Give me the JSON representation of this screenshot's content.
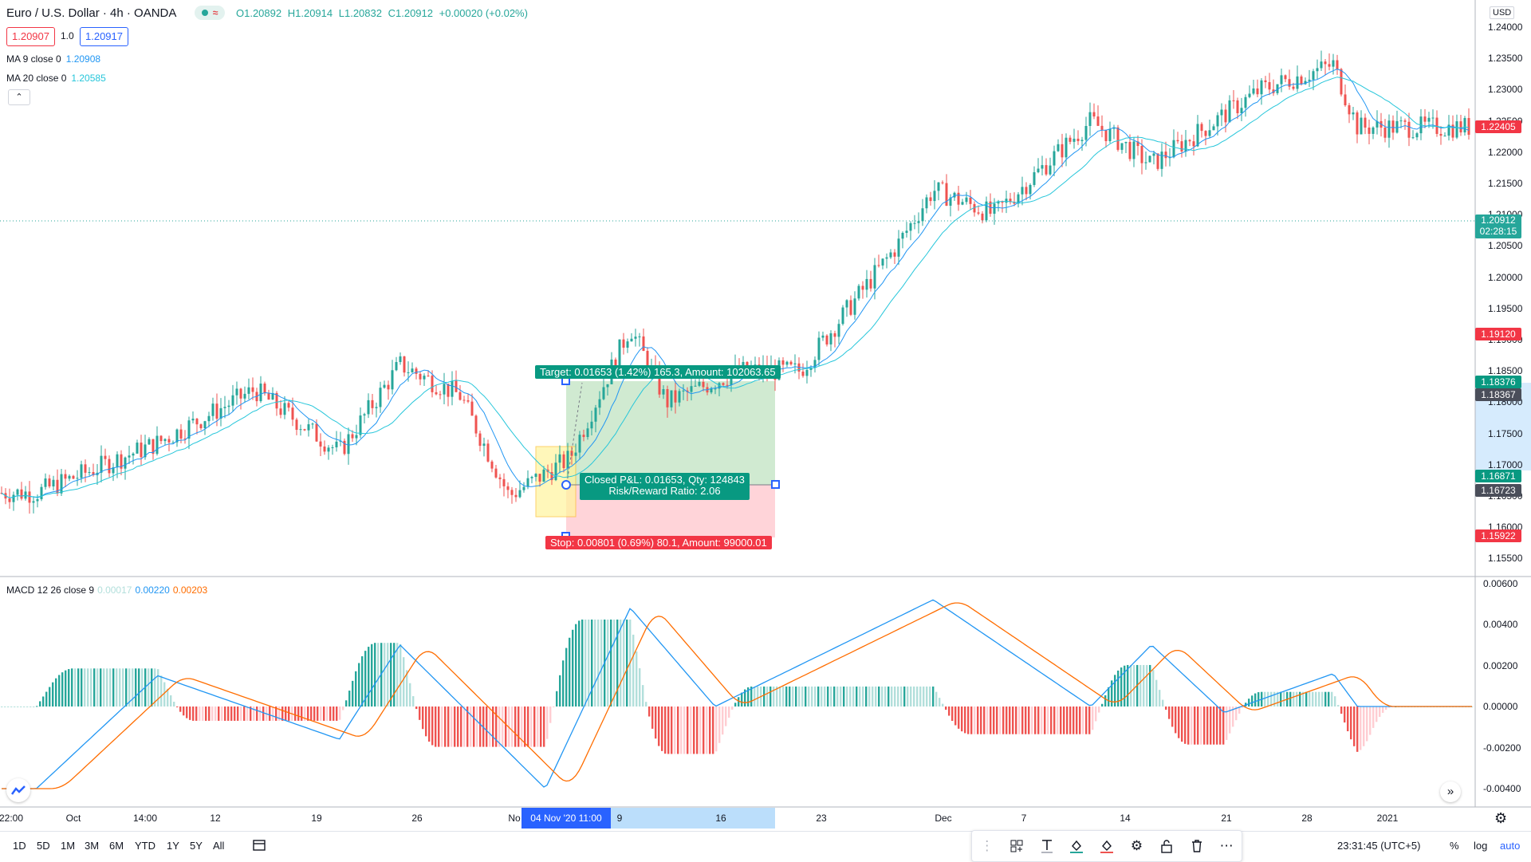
{
  "header": {
    "symbol_title": "Euro / U.S. Dollar · 4h · OANDA",
    "ohlc": {
      "open": "O1.20892",
      "high": "H1.20914",
      "low": "L1.20832",
      "close": "C1.20912",
      "change": "+0.00020 (+0.02%)"
    },
    "sell_price": "1.20907",
    "quantity": "1.0",
    "buy_price": "1.20917"
  },
  "indicators": {
    "ma9": {
      "label": "MA 9 close 0",
      "value": "1.20908"
    },
    "ma20": {
      "label": "MA 20 close 0",
      "value": "1.20585"
    }
  },
  "price_axis": {
    "currency": "USD",
    "ticks": [
      "1.24000",
      "1.23500",
      "1.23000",
      "1.22500",
      "1.22000",
      "1.21500",
      "1.21000",
      "1.20500",
      "1.20000",
      "1.19500",
      "1.19000",
      "1.18500",
      "1.18000",
      "1.17500",
      "1.17000",
      "1.16500",
      "1.16000",
      "1.15500"
    ],
    "labels": {
      "last": "1.22405",
      "current": "1.20912",
      "countdown": "02:28:15",
      "level_red": "1.19120",
      "target": "1.18376",
      "entry_marker": "1.18367",
      "pnl": "1.16871",
      "entry": "1.16723",
      "stop": "1.15922"
    }
  },
  "position_tool": {
    "target_text": "Target: 0.01653 (1.42%) 165.3, Amount: 102063.65",
    "pnl_line1": "Closed P&L: 0.01653, Qty: 124843",
    "pnl_line2": "Risk/Reward Ratio: 2.06",
    "stop_text": "Stop: 0.00801 (0.69%) 80.1, Amount: 99000.01"
  },
  "macd": {
    "label": "MACD 12 26 close 9",
    "hist": "0.00017",
    "macd": "0.00220",
    "signal": "0.00203",
    "axis": [
      "0.00600",
      "0.00400",
      "0.00200",
      "0.00000",
      "-0.00200",
      "-0.00400"
    ]
  },
  "time_axis": {
    "labels": [
      "22:00",
      "Oct",
      "14:00",
      "12",
      "19",
      "26",
      "No",
      "9",
      "16",
      "23",
      "Dec",
      "7",
      "14",
      "21",
      "28",
      "2021"
    ],
    "highlight": "04 Nov '20   11:00"
  },
  "bottom_bar": {
    "ranges": [
      "1D",
      "5D",
      "1M",
      "3M",
      "6M",
      "YTD",
      "1Y",
      "5Y",
      "All"
    ],
    "clock": "23:31:45 (UTC+5)",
    "percent": "%",
    "log": "log",
    "auto": "auto"
  },
  "colors": {
    "up": "#26a69a",
    "down": "#ef5350",
    "ma9": "#2196f3",
    "ma20": "#26c6da",
    "macd": "#2196f3",
    "signal": "#ff6d00",
    "accent": "#2962ff"
  },
  "chart_data": {
    "type": "candlestick",
    "symbol": "EUR/USD",
    "timeframe": "4h",
    "y_range": [
      1.153,
      1.2425
    ],
    "price_path": [
      {
        "x": "Sep 21",
        "y": 1.1655
      },
      {
        "x": "Oct 1",
        "y": 1.1735
      },
      {
        "x": "Oct 9",
        "y": 1.182
      },
      {
        "x": "Oct 16",
        "y": 1.172
      },
      {
        "x": "Oct 21",
        "y": 1.186
      },
      {
        "x": "Oct 26",
        "y": 1.181
      },
      {
        "x": "Oct 30",
        "y": 1.165
      },
      {
        "x": "Nov 4",
        "y": 1.171
      },
      {
        "x": "Nov 9",
        "y": 1.192
      },
      {
        "x": "Nov 12",
        "y": 1.18
      },
      {
        "x": "Nov 18",
        "y": 1.185
      },
      {
        "x": "Nov 23",
        "y": 1.185
      },
      {
        "x": "Dec 1",
        "y": 1.205
      },
      {
        "x": "Dec 4",
        "y": 1.214
      },
      {
        "x": "Dec 9",
        "y": 1.21
      },
      {
        "x": "Dec 17",
        "y": 1.225
      },
      {
        "x": "Dec 22",
        "y": 1.218
      },
      {
        "x": "Dec 31",
        "y": 1.23
      },
      {
        "x": "Jan 6",
        "y": 1.234
      },
      {
        "x": "Jan 8",
        "y": 1.224
      }
    ],
    "macd_path": [
      {
        "x": "Sep 21",
        "y": -0.004
      },
      {
        "x": "Oct 1",
        "y": 0.0015
      },
      {
        "x": "Oct 16",
        "y": -0.0016
      },
      {
        "x": "Oct 21",
        "y": 0.003
      },
      {
        "x": "Nov 2",
        "y": -0.004
      },
      {
        "x": "Nov 9",
        "y": 0.0048
      },
      {
        "x": "Nov 16",
        "y": 0.0
      },
      {
        "x": "Dec 4",
        "y": 0.0052
      },
      {
        "x": "Dec 17",
        "y": 0.0
      },
      {
        "x": "Dec 22",
        "y": 0.003
      },
      {
        "x": "Dec 28",
        "y": -0.0003
      },
      {
        "x": "Jan 6",
        "y": 0.0016
      },
      {
        "x": "Jan 8",
        "y": 0.0
      }
    ]
  }
}
